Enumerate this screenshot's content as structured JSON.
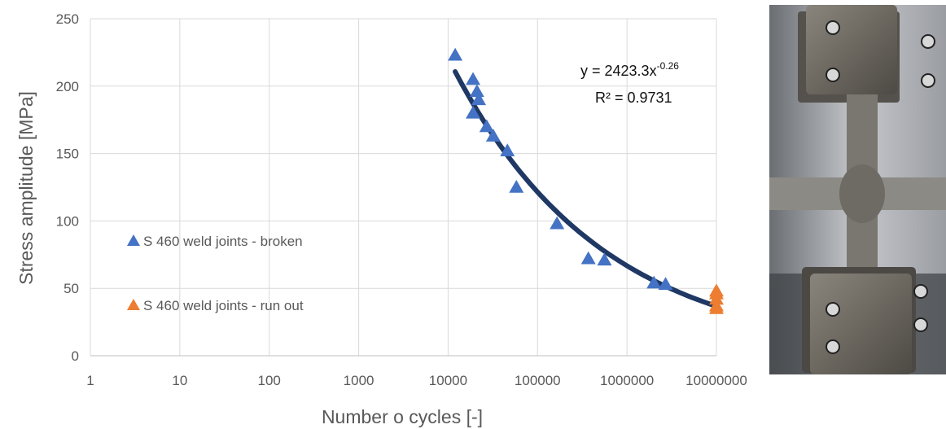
{
  "chart_data": {
    "type": "scatter",
    "xscale": "log",
    "xlim": [
      1,
      10000000
    ],
    "ylim": [
      0,
      250
    ],
    "xticks": [
      "1",
      "10",
      "100",
      "1000",
      "10000",
      "100000",
      "1000000",
      "10000000"
    ],
    "yticks": [
      "0",
      "50",
      "100",
      "150",
      "200",
      "250"
    ],
    "xlabel": "Number o cycles [-]",
    "ylabel": "Stress amplitude [MPa]",
    "grid": true,
    "legend_position": "left",
    "series": [
      {
        "name": "S 460 weld joints - broken",
        "marker": "triangle",
        "color": "#4472C4",
        "points": [
          {
            "x": 12000,
            "y": 223
          },
          {
            "x": 19000,
            "y": 205
          },
          {
            "x": 19000,
            "y": 180
          },
          {
            "x": 21000,
            "y": 196
          },
          {
            "x": 22000,
            "y": 190
          },
          {
            "x": 27000,
            "y": 170
          },
          {
            "x": 32000,
            "y": 163
          },
          {
            "x": 46000,
            "y": 152
          },
          {
            "x": 58000,
            "y": 125
          },
          {
            "x": 165000,
            "y": 98
          },
          {
            "x": 370000,
            "y": 72
          },
          {
            "x": 560000,
            "y": 71
          },
          {
            "x": 2000000,
            "y": 54
          },
          {
            "x": 2700000,
            "y": 53
          }
        ]
      },
      {
        "name": "S 460 weld joints - run out",
        "marker": "triangle",
        "color": "#ED7D31",
        "points": [
          {
            "x": 10000000,
            "y": 48
          },
          {
            "x": 10000000,
            "y": 46
          },
          {
            "x": 10000000,
            "y": 42
          },
          {
            "x": 10000000,
            "y": 37
          },
          {
            "x": 10000000,
            "y": 35
          }
        ]
      }
    ],
    "trendline": {
      "type": "power",
      "a": 2423.3,
      "b": -0.26,
      "x_range": [
        12000,
        10000000
      ],
      "color": "#1F3864",
      "equation_label": "y = 2423.3x",
      "equation_exponent": "-0.26",
      "r2_label": "R² = 0.9731"
    }
  }
}
